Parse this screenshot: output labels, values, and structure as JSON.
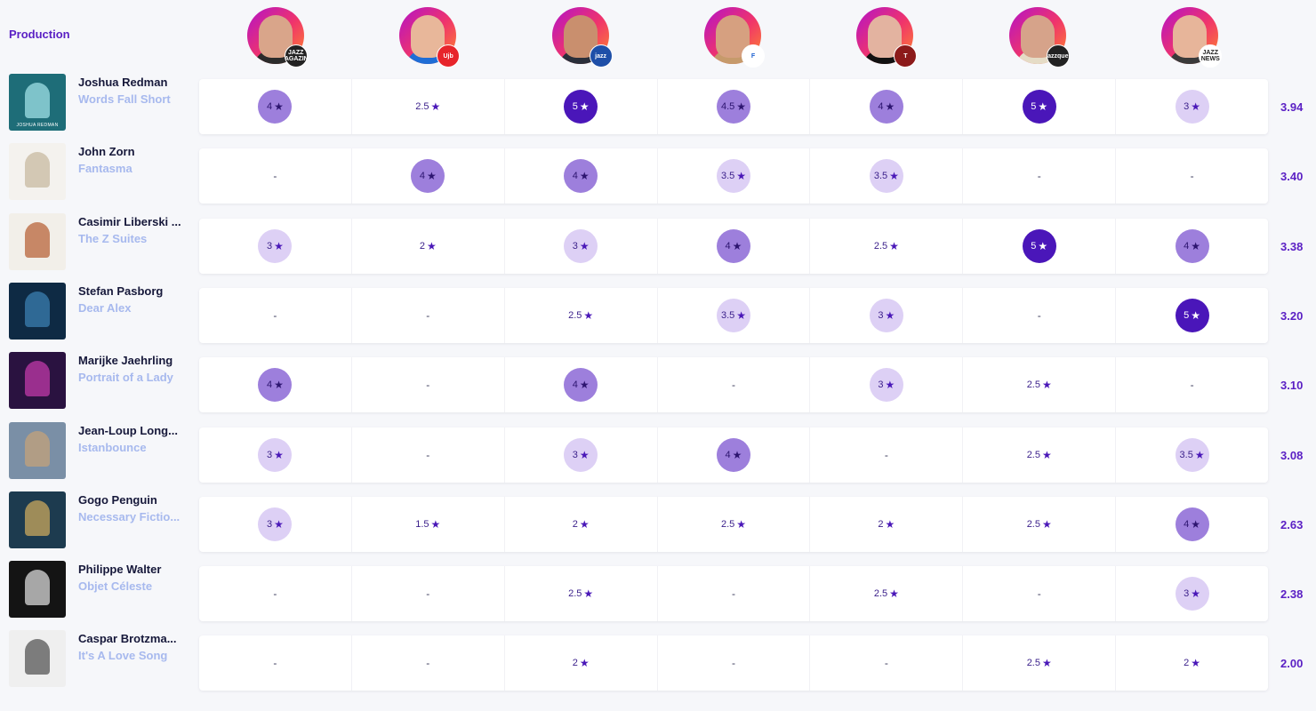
{
  "header": {
    "label": "Production"
  },
  "critics": [
    {
      "badge": "JAZZ\nMAGAZINE",
      "badge_bg": "#222222",
      "face": "#d9a58a",
      "body": "#2b2b2b"
    },
    {
      "badge": "Ujb",
      "badge_bg": "#e7242b",
      "face": "#e8b79a",
      "body": "#1f6dd6"
    },
    {
      "badge": "jazz",
      "badge_bg": "#1e4fa8",
      "face": "#c98f6e",
      "body": "#2a2f3a"
    },
    {
      "badge": "F",
      "badge_bg": "#ffffff",
      "badge_fg": "#1a5fd1",
      "face": "#d6a080",
      "body": "#c69a6b"
    },
    {
      "badge": "T",
      "badge_bg": "#8c1a1a",
      "face": "#e3b3a0",
      "body": "#111111"
    },
    {
      "badge": "Jazzques",
      "badge_bg": "#222222",
      "face": "#d6a38a",
      "body": "#e5dcc6"
    },
    {
      "badge": "JAZZ\nNEWS",
      "badge_bg": "#ffffff",
      "badge_fg": "#222222",
      "face": "#e7b59a",
      "body": "#3a3a3a"
    }
  ],
  "rows": [
    {
      "artist": "Joshua Redman",
      "album": "Words Fall Short",
      "cover_bg": "#1e6d78",
      "cover_fg": "#9fe0e6",
      "cover_caption": "JOSHUA REDMAN",
      "ratings": [
        "4",
        "2.5",
        "5",
        "4.5",
        "4",
        "5",
        "3"
      ],
      "avg": "3.94"
    },
    {
      "artist": "John Zorn",
      "album": "Fantasma",
      "cover_bg": "#f4f2ee",
      "cover_fg": "#c8b9a0",
      "cover_caption": "",
      "ratings": [
        "-",
        "4",
        "4",
        "3.5",
        "3.5",
        "-",
        "-"
      ],
      "avg": "3.40"
    },
    {
      "artist": "Casimir Liberski ...",
      "album": "The Z Suites",
      "cover_bg": "#f2efe9",
      "cover_fg": "#b8643a",
      "cover_caption": "",
      "ratings": [
        "3",
        "2",
        "3",
        "4",
        "2.5",
        "5",
        "4"
      ],
      "avg": "3.38"
    },
    {
      "artist": "Stefan Pasborg",
      "album": "Dear Alex",
      "cover_bg": "#0e2a44",
      "cover_fg": "#3b7fb0",
      "cover_caption": "",
      "ratings": [
        "-",
        "-",
        "2.5",
        "3.5",
        "3",
        "-",
        "5"
      ],
      "avg": "3.20"
    },
    {
      "artist": "Marijke Jaehrling",
      "album": "Portrait of a Lady",
      "cover_bg": "#2a1240",
      "cover_fg": "#c03aa8",
      "cover_caption": "",
      "ratings": [
        "4",
        "-",
        "4",
        "-",
        "3",
        "2.5",
        "-"
      ],
      "avg": "3.10"
    },
    {
      "artist": "Jean-Loup Long...",
      "album": "Istanbounce",
      "cover_bg": "#7a8fa6",
      "cover_fg": "#c4a27a",
      "cover_caption": "",
      "ratings": [
        "3",
        "-",
        "3",
        "4",
        "-",
        "2.5",
        "3.5"
      ],
      "avg": "3.08"
    },
    {
      "artist": "Gogo Penguin",
      "album": "Necessary Fictio...",
      "cover_bg": "#1d3b4f",
      "cover_fg": "#c9a85c",
      "cover_caption": "",
      "ratings": [
        "3",
        "1.5",
        "2",
        "2.5",
        "2",
        "2.5",
        "4"
      ],
      "avg": "2.63"
    },
    {
      "artist": "Philippe Walter",
      "album": "Objet Céleste",
      "cover_bg": "#141414",
      "cover_fg": "#d8d8d8",
      "cover_caption": "",
      "ratings": [
        "-",
        "-",
        "2.5",
        "-",
        "2.5",
        "-",
        "3"
      ],
      "avg": "2.38"
    },
    {
      "artist": "Caspar Brotzma...",
      "album": "It's A Love Song",
      "cover_bg": "#efefef",
      "cover_fg": "#555555",
      "cover_caption": "",
      "ratings": [
        "-",
        "-",
        "2",
        "-",
        "-",
        "2.5",
        "2"
      ],
      "avg": "2.00"
    }
  ],
  "icons": {
    "star": "star-icon"
  },
  "colors": {
    "accent": "#5a1fc4",
    "artist": "#16183a",
    "album": "#a7b9ee"
  }
}
